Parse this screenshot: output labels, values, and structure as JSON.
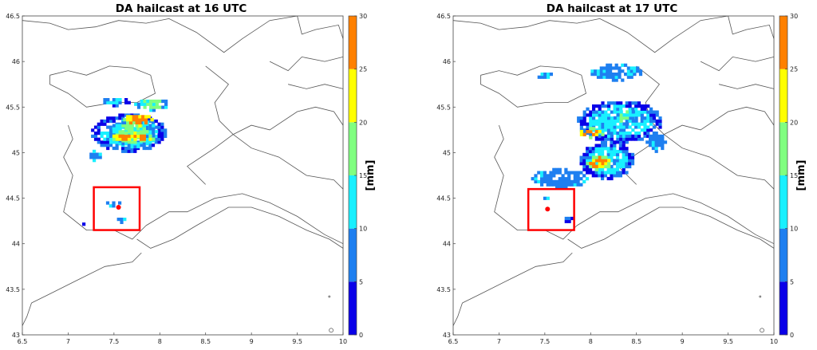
{
  "chart_data": [
    {
      "type": "heatmap",
      "title": "DA hailcast at 16 UTC",
      "xlim": [
        6.5,
        10
      ],
      "ylim": [
        43,
        46.5
      ],
      "xticks": [
        "6.5",
        "7",
        "7.5",
        "8",
        "8.5",
        "9",
        "9.5",
        "10"
      ],
      "yticks": [
        "43",
        "43.5",
        "44",
        "44.5",
        "45",
        "45.5",
        "46",
        "46.5"
      ],
      "colorbar": {
        "label": "[mm]",
        "ticks": [
          "0",
          "5",
          "10",
          "15",
          "20",
          "25",
          "30"
        ],
        "colors": [
          "#0a00e8",
          "#1e7ff0",
          "#19f0ff",
          "#80ff80",
          "#ffff00",
          "#ff8000"
        ]
      },
      "box": {
        "lon": [
          7.28,
          7.78
        ],
        "lat": [
          44.15,
          44.62
        ],
        "color": "#ff0000"
      },
      "marker": {
        "lon": 7.55,
        "lat": 44.4,
        "color": "#ff0000"
      },
      "cells": [
        {
          "lon": [
            7.35,
            7.65
          ],
          "lat": [
            45.5,
            45.58
          ],
          "level": 2
        },
        {
          "lon": [
            7.72,
            8.08
          ],
          "lat": [
            45.45,
            45.58
          ],
          "level": 3
        },
        {
          "lon": [
            7.25,
            8.05
          ],
          "lat": [
            45.0,
            45.4
          ],
          "level": 2
        },
        {
          "lon": [
            7.45,
            7.95
          ],
          "lat": [
            45.05,
            45.35
          ],
          "level": 3
        },
        {
          "lon": [
            7.6,
            7.9
          ],
          "lat": [
            45.28,
            45.4
          ],
          "level": 5
        },
        {
          "lon": [
            7.45,
            7.92
          ],
          "lat": [
            45.1,
            45.2
          ],
          "level": 5
        },
        {
          "lon": [
            7.2,
            7.35
          ],
          "lat": [
            44.9,
            45.0
          ],
          "level": 1
        },
        {
          "lon": [
            7.38,
            7.55
          ],
          "lat": [
            44.4,
            44.46
          ],
          "level": 1
        },
        {
          "lon": [
            7.32,
            7.48
          ],
          "lat": [
            44.35,
            44.38
          ],
          "level": 0
        },
        {
          "lon": [
            7.5,
            7.65
          ],
          "lat": [
            44.22,
            44.27
          ],
          "level": 1
        },
        {
          "lon": [
            7.12,
            7.18
          ],
          "lat": [
            44.2,
            44.23
          ],
          "level": 0
        }
      ]
    },
    {
      "type": "heatmap",
      "title": "DA hailcast at 17 UTC",
      "xlim": [
        6.5,
        10
      ],
      "ylim": [
        43,
        46.5
      ],
      "xticks": [
        "6.5",
        "7",
        "7.5",
        "8",
        "8.5",
        "9",
        "9.5",
        "10"
      ],
      "yticks": [
        "43",
        "43.5",
        "44",
        "44.5",
        "45",
        "45.5",
        "46",
        "46.5"
      ],
      "colorbar": {
        "label": "[mm]",
        "ticks": [
          "0",
          "5",
          "10",
          "15",
          "20",
          "25",
          "30"
        ],
        "colors": [
          "#0a00e8",
          "#1e7ff0",
          "#19f0ff",
          "#80ff80",
          "#ffff00",
          "#ff8000"
        ]
      },
      "box": {
        "lon": [
          7.32,
          7.82
        ],
        "lat": [
          44.15,
          44.6
        ],
        "color": "#ff0000"
      },
      "marker": {
        "lon": 7.53,
        "lat": 44.38,
        "color": "#ff0000"
      },
      "cells": [
        {
          "lon": [
            7.42,
            7.58
          ],
          "lat": [
            45.78,
            45.86
          ],
          "level": 1
        },
        {
          "lon": [
            8.0,
            8.55
          ],
          "lat": [
            45.78,
            45.95
          ],
          "level": 1
        },
        {
          "lon": [
            7.85,
            8.75
          ],
          "lat": [
            45.1,
            45.55
          ],
          "level": 2
        },
        {
          "lon": [
            7.85,
            8.15
          ],
          "lat": [
            45.15,
            45.25
          ],
          "level": 5
        },
        {
          "lon": [
            8.25,
            8.5
          ],
          "lat": [
            45.3,
            45.45
          ],
          "level": 3
        },
        {
          "lon": [
            7.88,
            8.45
          ],
          "lat": [
            44.7,
            45.1
          ],
          "level": 2
        },
        {
          "lon": [
            7.95,
            8.2
          ],
          "lat": [
            44.8,
            44.95
          ],
          "level": 5
        },
        {
          "lon": [
            7.35,
            7.95
          ],
          "lat": [
            44.6,
            44.8
          ],
          "level": 1
        },
        {
          "lon": [
            7.45,
            7.55
          ],
          "lat": [
            44.45,
            44.5
          ],
          "level": 1
        },
        {
          "lon": [
            7.65,
            7.82
          ],
          "lat": [
            44.23,
            44.27
          ],
          "level": 0
        },
        {
          "lon": [
            8.6,
            8.8
          ],
          "lat": [
            45.0,
            45.2
          ],
          "level": 1
        }
      ]
    }
  ]
}
